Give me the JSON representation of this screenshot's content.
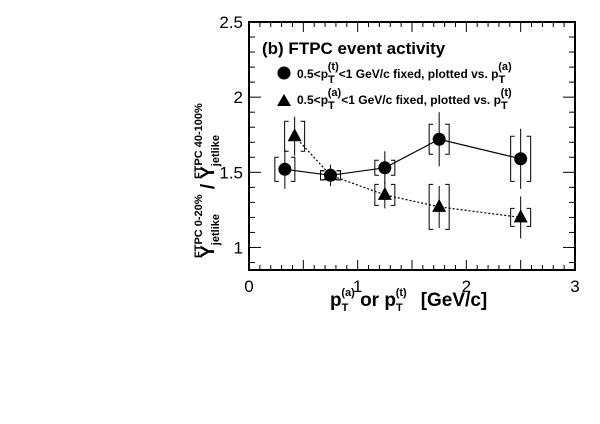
{
  "chart_data": {
    "type": "scatter",
    "title": "(b) FTPC event activity",
    "xlabel": {
      "main": "p",
      "sub1": "T",
      "sup1": "(a)",
      "mid": " or p",
      "sub2": "T",
      "sup2": "(t)",
      "unit": "[GeV/c]"
    },
    "ylabel": {
      "y1": "Y",
      "sub1": "jetlike",
      "sup1": "FTPC 0-20%",
      "slash": " / ",
      "y2": "Y",
      "sub2": "jetlike",
      "sup2": "FTPC 40-100%"
    },
    "xlim": [
      0,
      3
    ],
    "ylim": [
      0.85,
      2.5
    ],
    "x_ticks": [
      "0",
      "1",
      "2",
      "3"
    ],
    "y_ticks": [
      "1",
      "1.5",
      "2",
      "2.5"
    ],
    "legend_placement": "top",
    "series": [
      {
        "name": "0.5<p_T^(t)<1 GeV/c fixed, plotted vs. p_T^(a)",
        "legend_parts": {
          "pre": "0.5<p",
          "sub": "T",
          "sup": "(t)",
          "mid": "<1 GeV/c fixed, plotted vs. p",
          "sub2": "T",
          "sup2": "(a)"
        },
        "marker": "circle",
        "line": "solid",
        "x": [
          0.33,
          0.75,
          1.25,
          1.75,
          2.5
        ],
        "y": [
          1.52,
          1.48,
          1.53,
          1.72,
          1.59
        ],
        "stat_err": [
          0.13,
          0.07,
          0.11,
          0.18,
          0.2
        ],
        "sys_err": [
          0.08,
          0.03,
          0.05,
          0.1,
          0.15
        ]
      },
      {
        "name": "0.5<p_T^(a)<1 GeV/c fixed, plotted vs. p_T^(t)",
        "legend_parts": {
          "pre": "0.5<p",
          "sub": "T",
          "sup": "(a)",
          "mid": "<1 GeV/c fixed, plotted vs. p",
          "sub2": "T",
          "sup2": "(t)"
        },
        "marker": "triangle",
        "line": "dotted",
        "x": [
          0.42,
          0.75,
          1.25,
          1.75,
          2.5
        ],
        "y": [
          1.74,
          1.48,
          1.35,
          1.27,
          1.2
        ],
        "stat_err": [
          0.13,
          0.07,
          0.09,
          0.14,
          0.14
        ],
        "sys_err": [
          0.1,
          0.03,
          0.07,
          0.15,
          0.06
        ]
      }
    ]
  }
}
